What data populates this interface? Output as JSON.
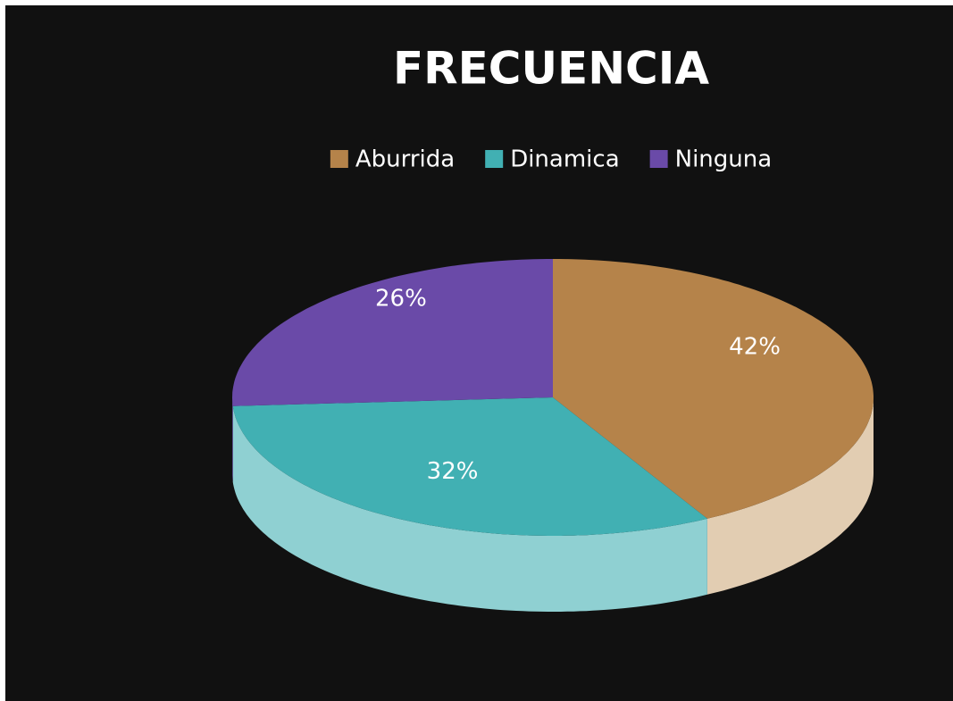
{
  "chart_data": {
    "type": "pie",
    "title": "FRECUENCIA",
    "categories": [
      "Aburrida",
      "Dinamica",
      "Ninguna"
    ],
    "values": [
      42,
      32,
      26
    ],
    "value_labels": [
      "42%",
      "32%",
      "26%"
    ],
    "colors": [
      "#b5834a",
      "#41b0b3",
      "#6a4aa8"
    ],
    "side_colors": [
      "#e2cdb2",
      "#8fd0d2",
      "#5a3e92"
    ],
    "legend": "top"
  }
}
